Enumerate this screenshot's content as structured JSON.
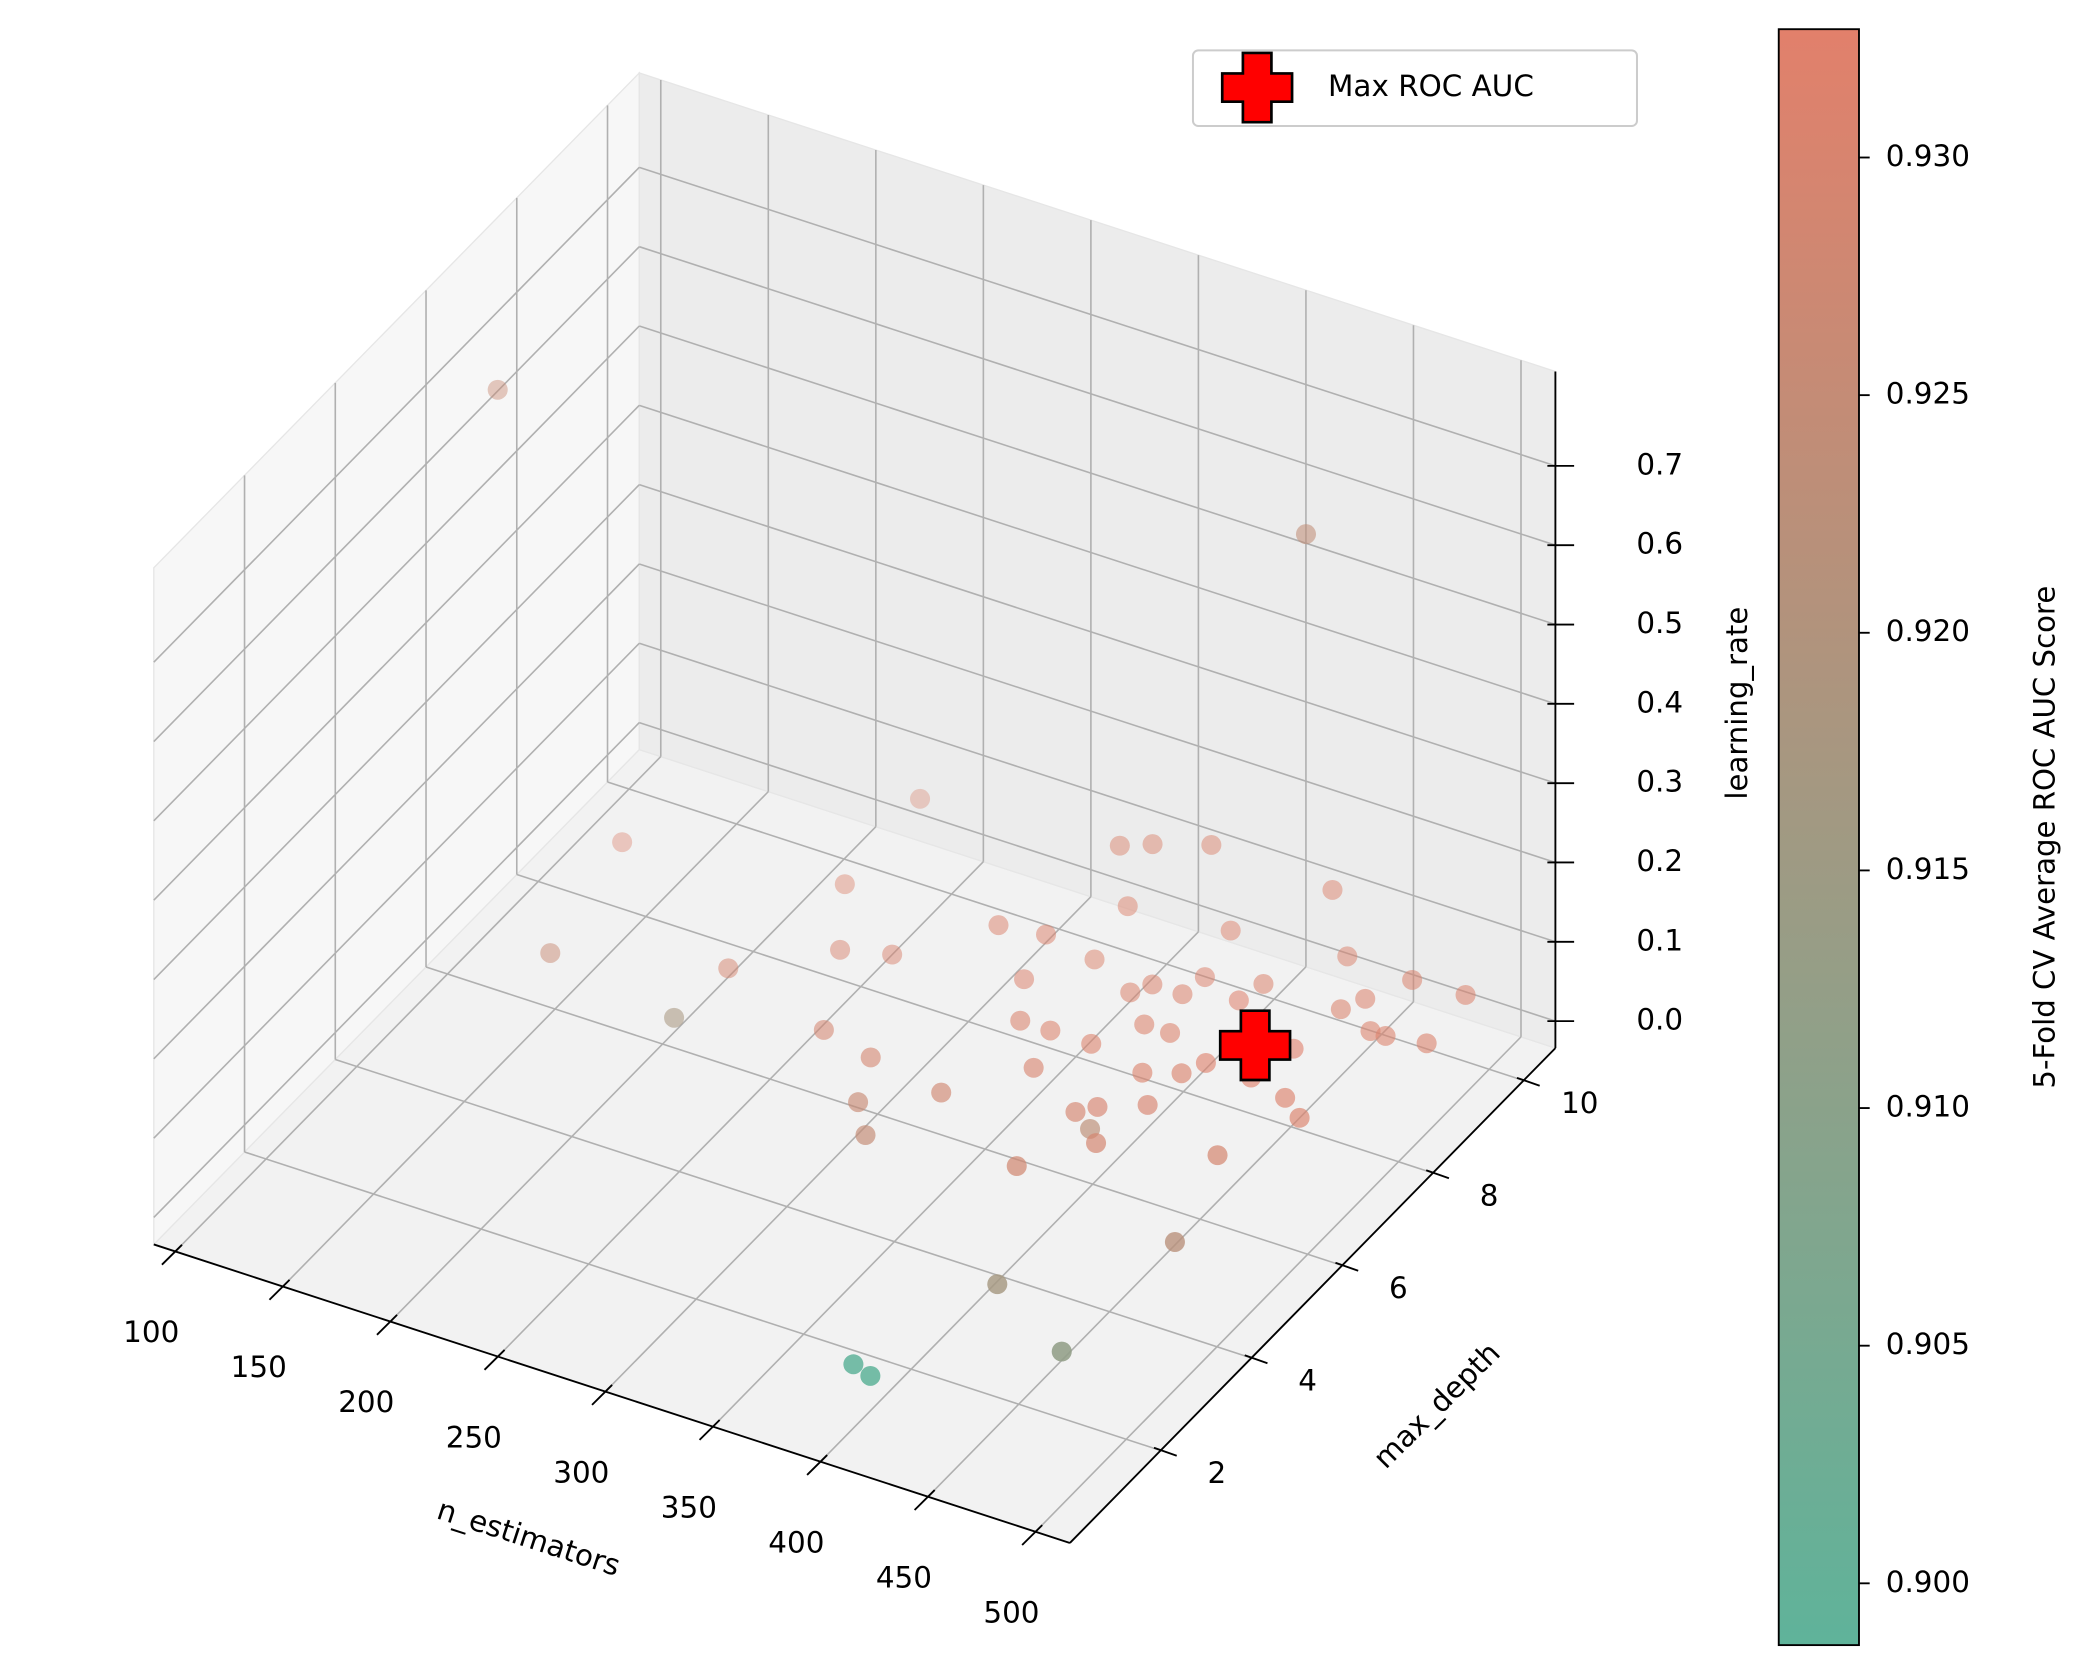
{
  "chart_data": {
    "type": "scatter3d",
    "xlabel": "n_estimators",
    "ylabel": "max_depth",
    "zlabel": "learning_rate",
    "colorbar_label": "5-Fold CV Average ROC AUC Score",
    "xlim": [
      90,
      516
    ],
    "ylim": [
      0,
      10.7
    ],
    "zlim": [
      -0.034,
      0.819
    ],
    "clim": [
      0.8987,
      0.9327
    ],
    "cmap": [
      "#5fb39a",
      "#e2806b"
    ],
    "grid": true,
    "legend": "upper right",
    "xticks": [
      100,
      150,
      200,
      250,
      300,
      350,
      400,
      450,
      500
    ],
    "yticks": [
      2,
      4,
      6,
      8,
      10
    ],
    "zticks": [
      {
        "value": 0,
        "label": "0.0"
      },
      {
        "value": 0.1,
        "label": "0.1"
      },
      {
        "value": 0.2,
        "label": "0.2"
      },
      {
        "value": 0.3,
        "label": "0.3"
      },
      {
        "value": 0.4,
        "label": "0.4"
      },
      {
        "value": 0.5,
        "label": "0.5"
      },
      {
        "value": 0.6,
        "label": "0.6"
      },
      {
        "value": 0.7,
        "label": "0.7"
      }
    ],
    "cticks": [
      {
        "value": 0.9,
        "label": "0.900"
      },
      {
        "value": 0.905,
        "label": "0.905"
      },
      {
        "value": 0.91,
        "label": "0.910"
      },
      {
        "value": 0.915,
        "label": "0.915"
      },
      {
        "value": 0.92,
        "label": "0.920"
      },
      {
        "value": 0.925,
        "label": "0.925"
      },
      {
        "value": 0.93,
        "label": "0.930"
      }
    ],
    "series": [
      {
        "x": [
          117,
          438,
          390,
          400,
          470,
          424,
          472,
          218,
          152,
          139,
          229,
          232,
          253,
          273,
          220,
          275,
          301,
          312,
          326,
          338,
          390,
          403,
          410,
          392,
          457,
          362,
          355,
          341,
          398,
          415,
          402,
          416,
          421,
          442,
          461,
          473,
          447,
          398,
          386,
          374,
          370,
          375,
          389,
          391,
          411,
          414,
          450,
          455,
          468,
          475,
          492,
          465,
          489,
          434,
          425,
          384,
          375,
          353,
          354,
          343,
          314,
          334,
          328,
          346
        ],
        "y": [
          6.3,
          8.9,
          1.2,
          1.1,
          2.0,
          2.76,
          4.4,
          5.4,
          5.8,
          8.0,
          10.3,
          8.5,
          7.4,
          7.6,
          6.5,
          6.0,
          5.8,
          5.0,
          4.5,
          5.6,
          4.8,
          5.8,
          5.6,
          6.0,
          6.05,
          6.5,
          7.2,
          7.2,
          6.2,
          6.5,
          7.0,
          7.2,
          7.5,
          7.5,
          7.35,
          7.1,
          8.2,
          7.8,
          7.8,
          7.2,
          8.25,
          8.5,
          8.5,
          8.9,
          8.7,
          9.1,
          9.1,
          9.4,
          8.9,
          8.9,
          9.0,
          9.96,
          10.0,
          10.0,
          10.1,
          9.8,
          9.8,
          9.0,
          9.5,
          9.3,
          8.0,
          8.1,
          7.9,
          8.6
        ],
        "z": [
          0.7,
          0.65,
          0.01,
          0.01,
          0.05,
          0.05,
          0.05,
          0.05,
          0.05,
          0.05,
          0.05,
          0.05,
          0.05,
          0.05,
          0.05,
          0.05,
          0.05,
          0.05,
          0.05,
          0.05,
          0.05,
          0.05,
          0.05,
          0.05,
          0.05,
          0.05,
          0.05,
          0.05,
          0.05,
          0.05,
          0.05,
          0.05,
          0.05,
          0.05,
          0.05,
          0.05,
          0.05,
          0.05,
          0.05,
          0.05,
          0.05,
          0.05,
          0.05,
          0.05,
          0.05,
          0.05,
          0.05,
          0.05,
          0.05,
          0.05,
          0.05,
          0.05,
          0.05,
          0.05,
          0.12,
          0.05,
          0.15,
          0.1,
          0.15,
          0.15,
          0.1,
          0.1,
          0.05,
          0.05
        ],
        "values": [
          0.926,
          0.924,
          0.899,
          0.899,
          0.912,
          0.917,
          0.922,
          0.918,
          0.926,
          0.931,
          0.93,
          0.931,
          0.93,
          0.93,
          0.929,
          0.929,
          0.929,
          0.926,
          0.925,
          0.928,
          0.928,
          0.923,
          0.929,
          0.929,
          0.929,
          0.93,
          0.931,
          0.931,
          0.93,
          0.93,
          0.931,
          0.931,
          0.932,
          0.932,
          0.931,
          0.931,
          0.932,
          0.931,
          0.931,
          0.931,
          0.931,
          0.931,
          0.931,
          0.931,
          0.932,
          0.931,
          0.931,
          0.931,
          0.931,
          0.931,
          0.931,
          0.931,
          0.931,
          0.931,
          0.931,
          0.932,
          0.931,
          0.931,
          0.931,
          0.931,
          0.931,
          0.931,
          0.931,
          0.931
        ]
      }
    ],
    "highlight": {
      "name": "Max ROC AUC",
      "color": "#ff0000",
      "x": 446,
      "y": 7.4,
      "z": 0.1
    }
  }
}
